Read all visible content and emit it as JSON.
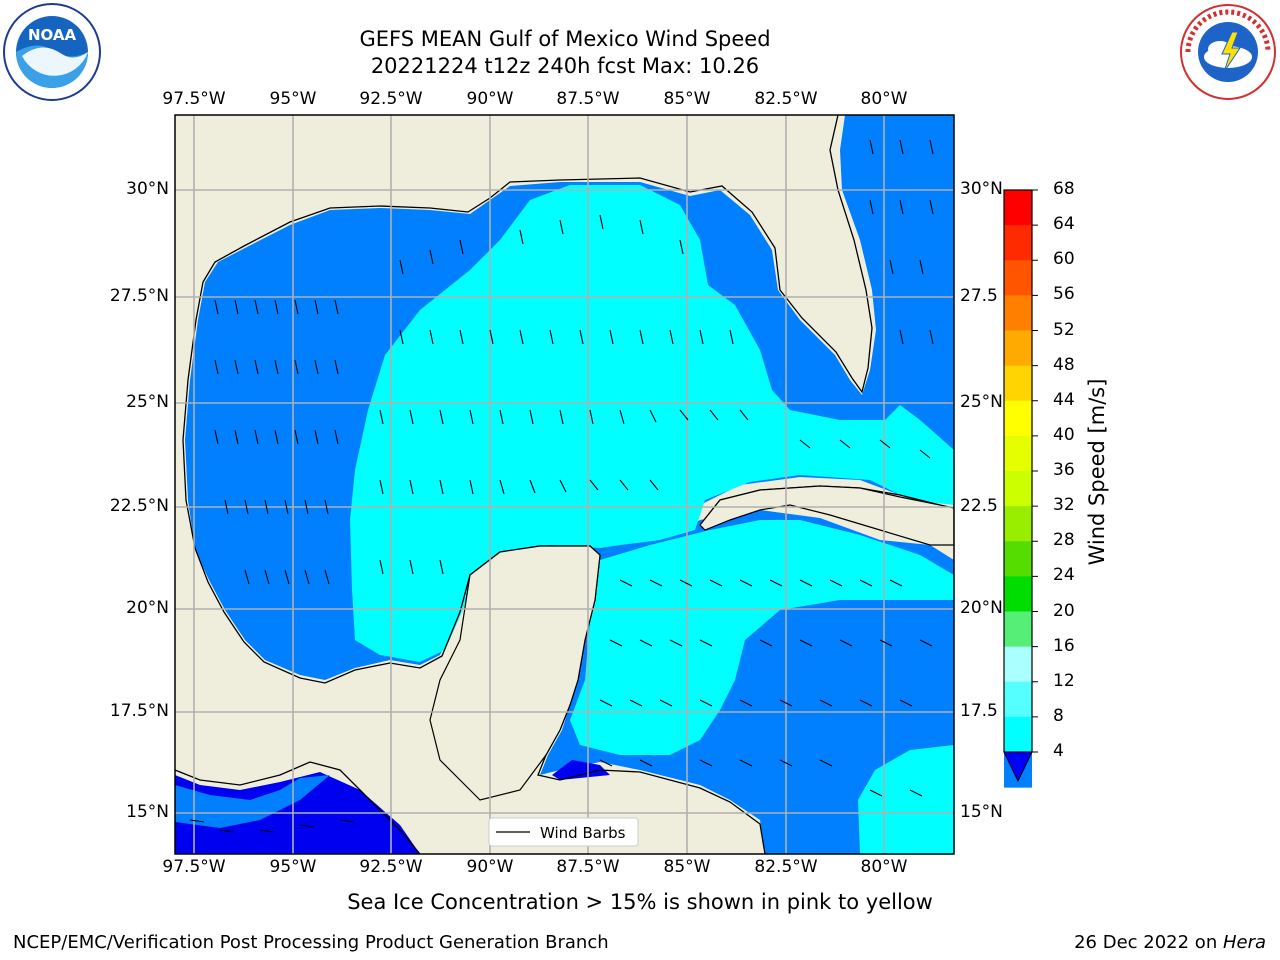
{
  "title": {
    "line1": "GEFS MEAN Gulf of Mexico Wind Speed",
    "line2": "20221224 t12z 240h fcst   Max: 10.26"
  },
  "logos": {
    "left": {
      "text": "NOAA",
      "ring_text": "NATIONAL OCEANIC AND ATMOSPHERIC ADMINISTRATION · U.S. DEPARTMENT OF COMMERCE"
    },
    "right": {
      "ring_text": "NATIONAL WEATHER SERVICE"
    }
  },
  "map": {
    "lon_labels": [
      "97.5°W",
      "95°W",
      "92.5°W",
      "90°W",
      "87.5°W",
      "85°W",
      "82.5°W",
      "80°W"
    ],
    "lat_labels_left": [
      "30°N",
      "27.5°N",
      "25°N",
      "22.5°N",
      "20°N",
      "17.5°N",
      "15°N"
    ],
    "lat_labels_right": [
      "30°N",
      "27.5",
      "25°N",
      "22.5",
      "20°N",
      "17.5",
      "15°N"
    ],
    "legend_label": "Wind Barbs",
    "colors": {
      "land": "#efeedd",
      "ocean_4_8": "#0080ff",
      "ocean_8_12": "#00ffff",
      "ocean_0_4": "#0000f0",
      "grid": "#b0b0b0"
    }
  },
  "colorbar": {
    "label": "Wind Speed [m/s]",
    "ticks": [
      "68",
      "64",
      "60",
      "56",
      "52",
      "48",
      "44",
      "40",
      "36",
      "32",
      "28",
      "24",
      "20",
      "16",
      "12",
      "8",
      "4"
    ],
    "colors": [
      "#ff0000",
      "#ff2a00",
      "#ff5500",
      "#ff8000",
      "#ffaa00",
      "#ffd400",
      "#ffff00",
      "#e5ff00",
      "#ccff00",
      "#99ee00",
      "#55dd00",
      "#00dd00",
      "#55ee77",
      "#aaffff",
      "#55ffff",
      "#00ffff",
      "#0080ff"
    ],
    "extend_color": "#0000ff"
  },
  "note": "Sea Ice Concentration > 15% is shown in pink to yellow",
  "footer": {
    "left": "NCEP/EMC/Verification Post Processing Product Generation Branch",
    "right_date": "26 Dec 2022 on ",
    "right_host": "Hera"
  }
}
